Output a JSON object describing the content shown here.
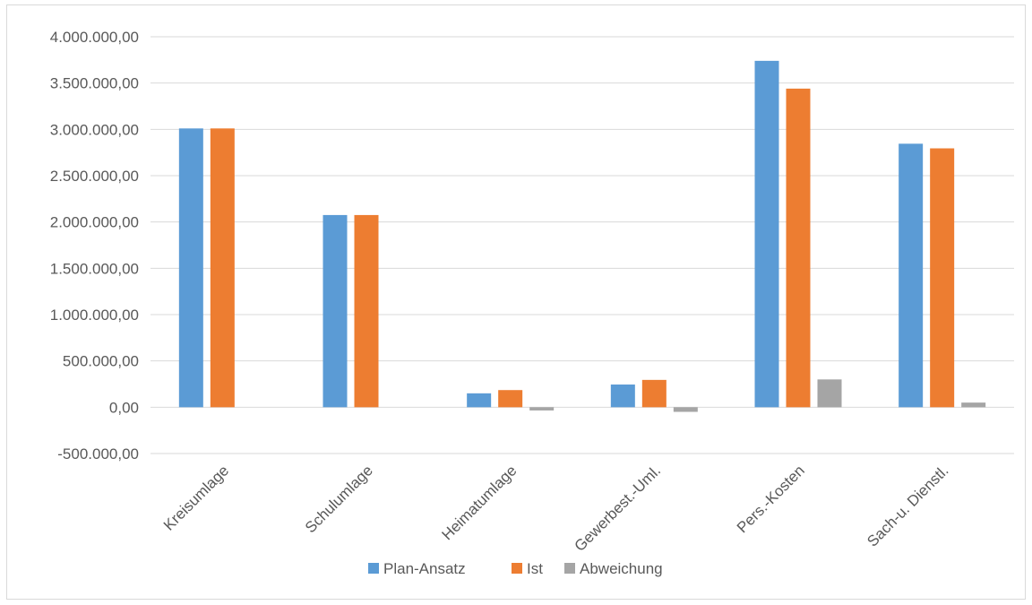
{
  "chart_data": {
    "type": "bar",
    "title": "",
    "xlabel": "",
    "ylabel": "",
    "categories": [
      "Kreisumlage",
      "Schulumlage",
      "Heimatumlage",
      "Gewerbest.-Uml.",
      "Pers.-Kosten",
      "Sach-u. Dienstl."
    ],
    "series": [
      {
        "name": "Plan-Ansatz",
        "color": "#5b9bd5",
        "values": [
          3010000,
          2075000,
          150000,
          245000,
          3740000,
          2845000
        ]
      },
      {
        "name": "Ist",
        "color": "#ed7d31",
        "values": [
          3010000,
          2075000,
          185000,
          295000,
          3440000,
          2795000
        ]
      },
      {
        "name": "Abweichung",
        "color": "#a5a5a5",
        "values": [
          0,
          0,
          -35000,
          -50000,
          300000,
          50000
        ]
      }
    ],
    "ylim": [
      -500000,
      4000000
    ],
    "yticks": [
      {
        "value": 4000000,
        "label": "4.000.000,00"
      },
      {
        "value": 3500000,
        "label": "3.500.000,00"
      },
      {
        "value": 3000000,
        "label": "3.000.000,00"
      },
      {
        "value": 2500000,
        "label": "2.500.000,00"
      },
      {
        "value": 2000000,
        "label": "2.000.000,00"
      },
      {
        "value": 1500000,
        "label": "1.500.000,00"
      },
      {
        "value": 1000000,
        "label": "1.000.000,00"
      },
      {
        "value": 500000,
        "label": "500.000,00"
      },
      {
        "value": 0,
        "label": "0,00"
      },
      {
        "value": -500000,
        "label": "-500.000,00"
      }
    ],
    "grid": true,
    "legend_position": "bottom"
  }
}
